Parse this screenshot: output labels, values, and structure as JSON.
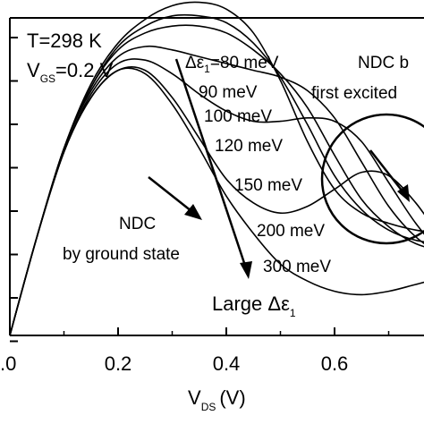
{
  "chart_data": {
    "type": "line",
    "xlabel": "V",
    "xlabel_sub": "DS",
    "xlabel_unit": "(V)",
    "xlim": [
      0.0,
      0.85
    ],
    "ylim": [
      0,
      1.0
    ],
    "x_ticks": [
      0.0,
      0.2,
      0.4,
      0.6
    ],
    "x_tick_labels": [
      ".0",
      "0.2",
      "0.4",
      "0.6"
    ],
    "y_tick_count": 8,
    "grid": false,
    "annotations": {
      "temperature": "T=298 K",
      "vgs_prefix": "V",
      "vgs_sub": "GS",
      "vgs_value": "=0.2 V",
      "ndc_ground_line1": "NDC",
      "ndc_ground_line2": "by ground state",
      "ndc_excited_line1": "NDC b",
      "ndc_excited_line2": "first excited",
      "large_prefix": "Large ",
      "large_symbol": "Δε",
      "large_sub": "1",
      "delta_symbol": "Δε",
      "delta_sub": "1",
      "delta_eq": "=80 meV"
    },
    "series": [
      {
        "label": "=80 meV",
        "x": [
          0,
          0.05,
          0.1,
          0.15,
          0.2,
          0.25,
          0.3,
          0.35,
          0.4,
          0.45,
          0.5,
          0.55,
          0.6,
          0.65,
          0.7,
          0.75,
          0.8,
          0.85
        ],
        "y": [
          0,
          0.29,
          0.55,
          0.74,
          0.86,
          0.93,
          0.97,
          0.98,
          0.96,
          0.89,
          0.75,
          0.57,
          0.43,
          0.36,
          0.33,
          0.31,
          0.3,
          0.29
        ]
      },
      {
        "label": "90 meV",
        "x": [
          0,
          0.05,
          0.1,
          0.15,
          0.2,
          0.25,
          0.3,
          0.35,
          0.4,
          0.45,
          0.5,
          0.55,
          0.6,
          0.65,
          0.7,
          0.75,
          0.8,
          0.85
        ],
        "y": [
          0,
          0.29,
          0.55,
          0.73,
          0.85,
          0.91,
          0.94,
          0.94,
          0.92,
          0.86,
          0.76,
          0.62,
          0.47,
          0.37,
          0.31,
          0.28,
          0.27,
          0.26
        ]
      },
      {
        "label": "100 meV",
        "x": [
          0,
          0.05,
          0.1,
          0.15,
          0.2,
          0.25,
          0.3,
          0.35,
          0.4,
          0.45,
          0.5,
          0.55,
          0.6,
          0.65,
          0.7,
          0.75,
          0.8,
          0.85
        ],
        "y": [
          0,
          0.29,
          0.55,
          0.73,
          0.84,
          0.89,
          0.91,
          0.91,
          0.89,
          0.84,
          0.77,
          0.67,
          0.53,
          0.4,
          0.32,
          0.27,
          0.25,
          0.24
        ]
      },
      {
        "label": "120 meV",
        "x": [
          0,
          0.05,
          0.1,
          0.15,
          0.2,
          0.25,
          0.3,
          0.35,
          0.4,
          0.45,
          0.5,
          0.55,
          0.6,
          0.65,
          0.7,
          0.75,
          0.8,
          0.85
        ],
        "y": [
          0,
          0.29,
          0.55,
          0.72,
          0.82,
          0.85,
          0.84,
          0.82,
          0.8,
          0.78,
          0.76,
          0.72,
          0.64,
          0.51,
          0.38,
          0.29,
          0.24,
          0.22
        ]
      },
      {
        "label": "150 meV",
        "x": [
          0,
          0.05,
          0.1,
          0.15,
          0.2,
          0.25,
          0.3,
          0.35,
          0.4,
          0.45,
          0.5,
          0.55,
          0.6,
          0.65,
          0.7,
          0.75,
          0.8,
          0.85
        ],
        "y": [
          0,
          0.29,
          0.54,
          0.71,
          0.8,
          0.81,
          0.77,
          0.71,
          0.66,
          0.63,
          0.63,
          0.64,
          0.63,
          0.57,
          0.45,
          0.33,
          0.24,
          0.19
        ]
      },
      {
        "label": "200 meV",
        "x": [
          0,
          0.05,
          0.1,
          0.15,
          0.2,
          0.25,
          0.3,
          0.35,
          0.4,
          0.45,
          0.5,
          0.55,
          0.6,
          0.65,
          0.7,
          0.75,
          0.8,
          0.85
        ],
        "y": [
          0,
          0.29,
          0.54,
          0.7,
          0.78,
          0.78,
          0.7,
          0.58,
          0.46,
          0.39,
          0.36,
          0.38,
          0.43,
          0.48,
          0.47,
          0.39,
          0.28,
          0.19
        ]
      },
      {
        "label": "300 meV",
        "x": [
          0,
          0.05,
          0.1,
          0.15,
          0.2,
          0.25,
          0.3,
          0.35,
          0.4,
          0.45,
          0.5,
          0.55,
          0.6,
          0.65,
          0.7,
          0.75,
          0.8,
          0.85
        ],
        "y": [
          0,
          0.29,
          0.54,
          0.7,
          0.78,
          0.77,
          0.68,
          0.55,
          0.41,
          0.3,
          0.21,
          0.16,
          0.13,
          0.12,
          0.13,
          0.15,
          0.17,
          0.18
        ]
      }
    ]
  }
}
